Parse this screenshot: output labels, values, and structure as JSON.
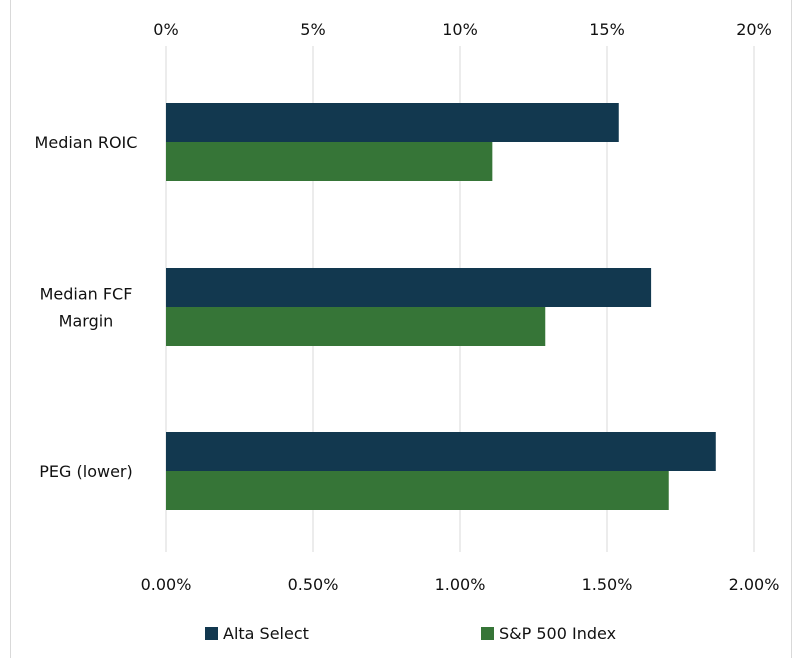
{
  "chart_data": {
    "type": "bar",
    "orientation": "horizontal",
    "categories": [
      "Median ROIC",
      "Median FCF Margin",
      "PEG (lower)"
    ],
    "category_lines": [
      [
        "Median ROIC"
      ],
      [
        "Median FCF",
        "Margin"
      ],
      [
        "PEG (lower)"
      ]
    ],
    "series": [
      {
        "name": "Alta Select",
        "color": "#12384f"
      },
      {
        "name": "S&P 500 Index",
        "color": "#367537"
      }
    ],
    "top_axis": {
      "ticks": [
        "0%",
        "5%",
        "10%",
        "15%",
        "20%"
      ],
      "range": [
        0,
        20
      ]
    },
    "bottom_axis": {
      "ticks": [
        "0.00%",
        "0.50%",
        "1.00%",
        "1.50%",
        "2.00%"
      ],
      "range": [
        0,
        2
      ]
    },
    "bars": [
      {
        "category": "Median ROIC",
        "axis": "top",
        "values": [
          15.4,
          11.1
        ]
      },
      {
        "category": "Median FCF Margin",
        "axis": "top",
        "values": [
          16.5,
          12.9
        ]
      },
      {
        "category": "PEG (lower)",
        "axis": "bottom",
        "values": [
          1.87,
          1.71
        ]
      }
    ],
    "grid": true,
    "legend": "bottom"
  }
}
